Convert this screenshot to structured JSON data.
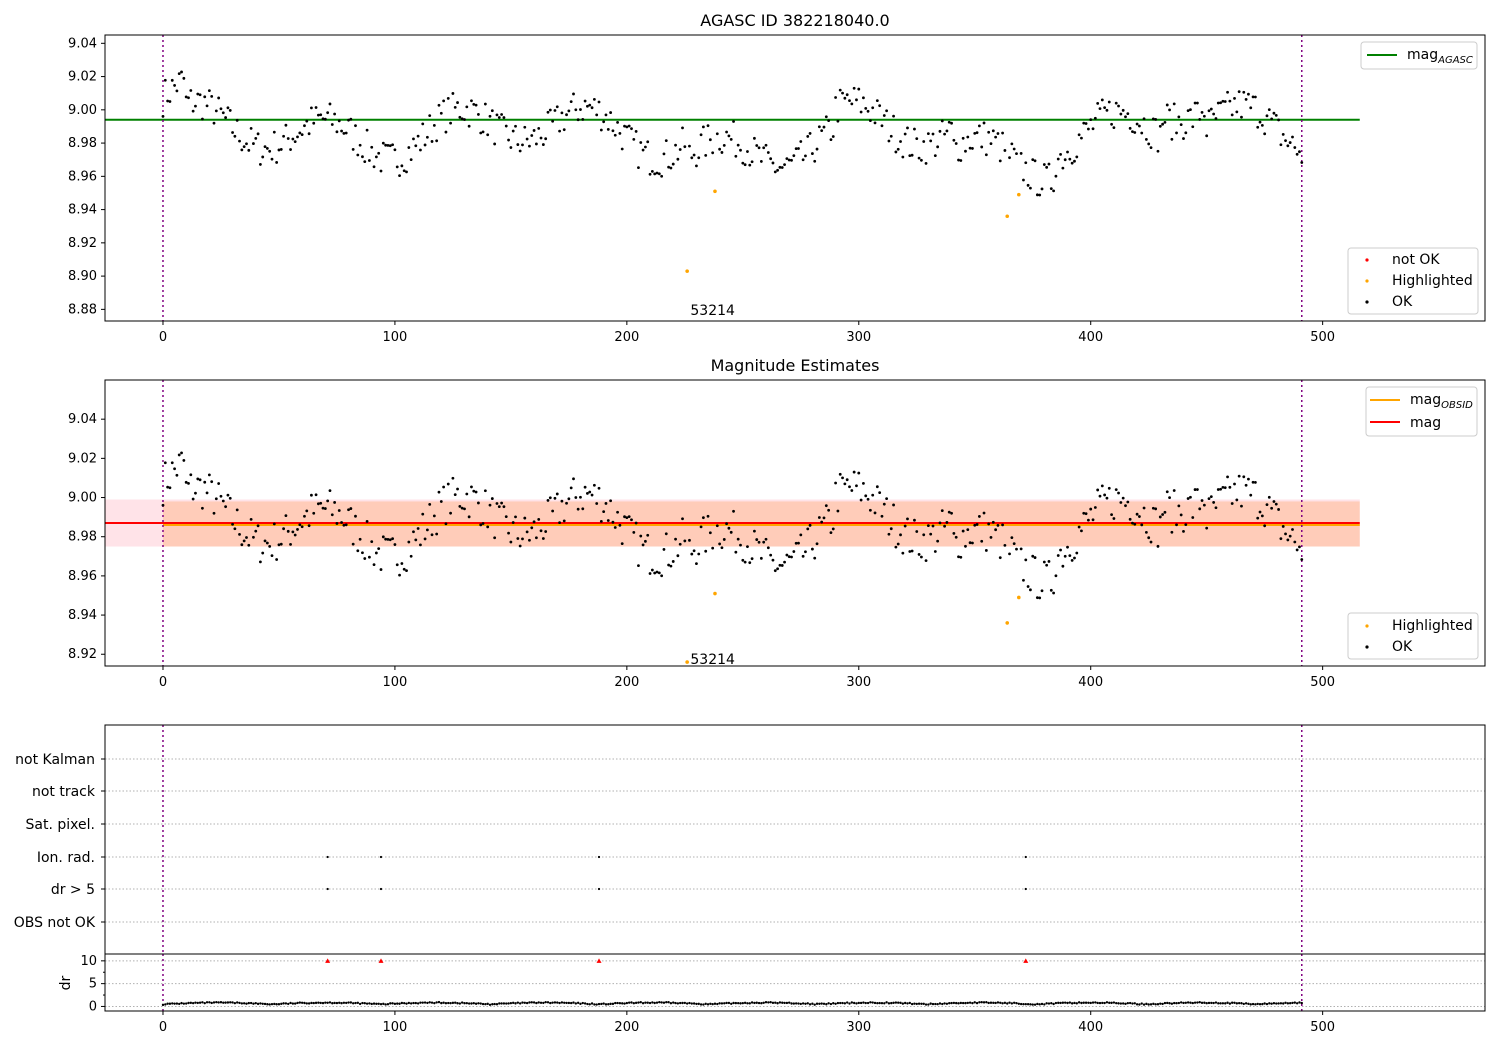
{
  "chart_data": [
    {
      "type": "scatter",
      "title": "AGASC ID 382218040.0",
      "xlim": [
        -25,
        570
      ],
      "ylim": [
        8.873,
        9.045
      ],
      "xticks": [
        0,
        100,
        200,
        300,
        400,
        500
      ],
      "yticks": [
        8.88,
        8.9,
        8.92,
        8.94,
        8.96,
        8.98,
        9.0,
        9.02,
        9.04
      ],
      "vlines": [
        0,
        491
      ],
      "hline": {
        "name": "mag",
        "sub": "AGASC",
        "y": 8.994,
        "x_range": [
          -25,
          516
        ],
        "color": "#008000"
      },
      "annotation": {
        "text": "53214",
        "x": 237,
        "y": 8.879
      },
      "legend_top": [
        {
          "name": "mag",
          "sub": "AGASC",
          "color": "#008000"
        }
      ],
      "legend_bottom": [
        {
          "name": "not OK",
          "color": "#ff0000"
        },
        {
          "name": "Highlighted",
          "color": "#ffa500"
        },
        {
          "name": "OK",
          "color": "#000000"
        }
      ],
      "highlighted": [
        [
          226,
          8.903
        ],
        [
          238,
          8.951
        ],
        [
          364,
          8.936
        ],
        [
          369,
          8.949
        ]
      ]
    },
    {
      "type": "scatter",
      "title": "Magnitude Estimates",
      "xlim": [
        -25,
        570
      ],
      "ylim": [
        8.914,
        9.06
      ],
      "xticks": [
        0,
        100,
        200,
        300,
        400,
        500
      ],
      "yticks": [
        8.92,
        8.94,
        8.96,
        8.98,
        9.0,
        9.02,
        9.04
      ],
      "vlines": [
        0,
        491
      ],
      "mag_line": {
        "name": "mag",
        "y": 8.987,
        "x_range": [
          -25,
          516
        ],
        "color": "#ff0000",
        "band": [
          8.975,
          8.999
        ]
      },
      "mag_obsid_line": {
        "name": "mag",
        "sub": "OBSID",
        "y": 8.986,
        "x_range": [
          0,
          516
        ],
        "color": "#ffa500",
        "band": [
          8.975,
          8.998
        ]
      },
      "annotation": {
        "text": "53214",
        "x": 237,
        "y": 8.917
      },
      "legend_top": [
        {
          "name": "mag",
          "sub": "OBSID",
          "color": "#ffa500"
        },
        {
          "name": "mag",
          "color": "#ff0000"
        }
      ],
      "legend_bottom": [
        {
          "name": "Highlighted",
          "color": "#ffa500"
        },
        {
          "name": "OK",
          "color": "#000000"
        }
      ],
      "highlighted": [
        [
          226,
          8.916
        ],
        [
          238,
          8.951
        ],
        [
          364,
          8.936
        ],
        [
          369,
          8.949
        ]
      ]
    },
    {
      "type": "scatter",
      "flags_panel": {
        "xlim": [
          -25,
          570
        ],
        "rows": [
          "not Kalman",
          "not track",
          "Sat. pixel.",
          "Ion. rad.",
          "dr > 5",
          "OBS not OK"
        ],
        "flag_points": {
          "Ion. rad.": [
            71,
            94,
            188,
            372
          ],
          "dr > 5": [
            71,
            94,
            188,
            372
          ]
        }
      },
      "dr_panel": {
        "ylabel": "dr",
        "xlim": [
          -25,
          570
        ],
        "ylim": [
          -1,
          11.5
        ],
        "yticks": [
          0,
          5,
          10
        ],
        "xticks": [
          0,
          100,
          200,
          300,
          400,
          500
        ],
        "outliers": [
          [
            71,
            10
          ],
          [
            94,
            10
          ],
          [
            188,
            10
          ],
          [
            372,
            10
          ]
        ]
      },
      "vlines": [
        0,
        491
      ]
    }
  ]
}
